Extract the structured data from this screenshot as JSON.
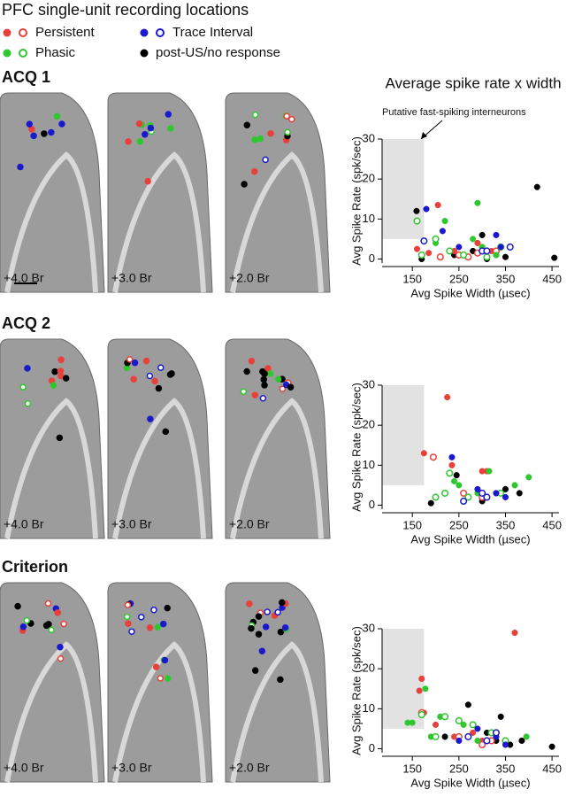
{
  "legend": {
    "title": "PFC single-unit recording locations",
    "items": [
      {
        "label": "Persistent",
        "color": "#e8403a",
        "open": true
      },
      {
        "label": "Phasic",
        "color": "#2ec82e",
        "open": true
      },
      {
        "label": "Trace Interval",
        "color": "#1a1acc",
        "open": true
      },
      {
        "label": "post-US/no response",
        "color": "#000000",
        "open": false
      }
    ]
  },
  "scatter_title": "Average spike rate x width",
  "shade_label": "Putative fast-spiking interneurons",
  "rows": [
    {
      "title": "ACQ 1",
      "slices": [
        "+4.0 Br",
        "+3.0 Br",
        "+2.0 Br"
      ]
    },
    {
      "title": "ACQ 2",
      "slices": [
        "+4.0 Br",
        "+3.0 Br",
        "+2.0 Br"
      ]
    },
    {
      "title": "Criterion",
      "slices": [
        "+4.0 Br",
        "+3.0 Br",
        "+2.0 Br"
      ]
    }
  ],
  "chart_data": [
    {
      "type": "scatter",
      "xlabel": "Avg Spike Width (µsec)",
      "ylabel": "Avg Spike Rate (spk/sec)",
      "xlim": [
        85,
        465
      ],
      "ylim": [
        -1,
        30
      ],
      "xticks": [
        150,
        250,
        350,
        450
      ],
      "yticks": [
        0,
        10,
        20,
        30
      ],
      "shade": {
        "x": [
          85,
          175
        ],
        "y": [
          5,
          30
        ]
      },
      "series": [
        {
          "color": "#000000",
          "open": false,
          "x": [
            159,
            418,
            455,
            300,
            280,
            330,
            170,
            240,
            310,
            350
          ],
          "y": [
            12,
            18,
            0.3,
            6,
            2,
            1,
            0,
            1,
            0,
            0.5
          ]
        },
        {
          "color": "#e8403a",
          "open": false,
          "x": [
            205,
            160,
            185,
            290,
            300,
            320,
            240,
            260
          ],
          "y": [
            13.5,
            2.5,
            1.5,
            4,
            3,
            2,
            2,
            1
          ]
        },
        {
          "color": "#e8403a",
          "open": true,
          "x": [
            210,
            250,
            270,
            330,
            290
          ],
          "y": [
            0.5,
            1,
            0.5,
            2,
            1.5
          ]
        },
        {
          "color": "#2ec82e",
          "open": false,
          "x": [
            290,
            220,
            200,
            280,
            300,
            330
          ],
          "y": [
            14,
            9.5,
            4,
            5,
            3,
            1
          ]
        },
        {
          "color": "#2ec82e",
          "open": true,
          "x": [
            160,
            200,
            230,
            260,
            310,
            340,
            170
          ],
          "y": [
            9.5,
            5,
            2,
            1,
            0.5,
            3,
            1
          ]
        },
        {
          "color": "#1a1acc",
          "open": false,
          "x": [
            180,
            215,
            250,
            330,
            340
          ],
          "y": [
            12.5,
            7,
            3,
            6,
            3
          ]
        },
        {
          "color": "#1a1acc",
          "open": true,
          "x": [
            175,
            300,
            360,
            310
          ],
          "y": [
            4.5,
            2,
            3,
            2
          ]
        }
      ]
    },
    {
      "type": "scatter",
      "xlabel": "Avg Spike Width (µsec)",
      "ylabel": "Avg Spike Rate (spk/sec)",
      "xlim": [
        85,
        465
      ],
      "ylim": [
        -1,
        30
      ],
      "xticks": [
        150,
        250,
        350,
        450
      ],
      "yticks": [
        0,
        10,
        20,
        30
      ],
      "shade": {
        "x": [
          85,
          175
        ],
        "y": [
          5,
          30
        ]
      },
      "series": [
        {
          "color": "#000000",
          "open": false,
          "x": [
            245,
            190,
            270,
            330,
            350,
            380,
            300
          ],
          "y": [
            7.5,
            0.5,
            2,
            3,
            4,
            3,
            1
          ]
        },
        {
          "color": "#e8403a",
          "open": false,
          "x": [
            225,
            175,
            235,
            300,
            310
          ],
          "y": [
            27,
            13,
            10,
            8.5,
            8.5
          ]
        },
        {
          "color": "#e8403a",
          "open": true,
          "x": [
            195,
            260,
            300
          ],
          "y": [
            12,
            3,
            2
          ]
        },
        {
          "color": "#2ec82e",
          "open": false,
          "x": [
            250,
            315,
            400,
            290,
            370,
            240
          ],
          "y": [
            5,
            8.5,
            7,
            3,
            5,
            6
          ]
        },
        {
          "color": "#2ec82e",
          "open": true,
          "x": [
            230,
            200,
            270,
            340,
            220
          ],
          "y": [
            8,
            2,
            2,
            3,
            3
          ]
        },
        {
          "color": "#1a1acc",
          "open": false,
          "x": [
            235,
            290,
            330,
            350
          ],
          "y": [
            12,
            4,
            3,
            2
          ]
        },
        {
          "color": "#1a1acc",
          "open": true,
          "x": [
            300,
            310,
            260
          ],
          "y": [
            3,
            2,
            1
          ]
        }
      ]
    },
    {
      "type": "scatter",
      "xlabel": "Avg Spike Width (µsec)",
      "ylabel": "Avg Spike Rate (spk/sec)",
      "xlim": [
        85,
        465
      ],
      "ylim": [
        -1,
        30
      ],
      "xticks": [
        150,
        250,
        350,
        450
      ],
      "yticks": [
        0,
        10,
        20,
        30
      ],
      "shade": {
        "x": [
          85,
          175
        ],
        "y": [
          5,
          30
        ]
      },
      "series": [
        {
          "color": "#000000",
          "open": false,
          "x": [
            270,
            340,
            450,
            385,
            220,
            310,
            330,
            360
          ],
          "y": [
            11,
            8,
            0.5,
            2,
            3,
            4,
            2,
            1
          ]
        },
        {
          "color": "#e8403a",
          "open": false,
          "x": [
            370,
            170,
            165,
            175,
            200,
            280,
            300,
            240
          ],
          "y": [
            29,
            17.5,
            14.5,
            9,
            6,
            4,
            2,
            3
          ]
        },
        {
          "color": "#e8403a",
          "open": true,
          "x": [
            170,
            250,
            320,
            300
          ],
          "y": [
            9,
            3,
            2,
            1
          ]
        },
        {
          "color": "#2ec82e",
          "open": false,
          "x": [
            178,
            140,
            150,
            190,
            260,
            210,
            395,
            290
          ],
          "y": [
            15,
            6.5,
            6.5,
            3,
            6,
            8,
            3,
            2
          ]
        },
        {
          "color": "#2ec82e",
          "open": true,
          "x": [
            170,
            220,
            250,
            280,
            320,
            350,
            200
          ],
          "y": [
            8.5,
            8,
            7,
            6,
            4,
            2,
            3
          ]
        },
        {
          "color": "#1a1acc",
          "open": false,
          "x": [
            290,
            330,
            250,
            350
          ],
          "y": [
            5,
            3,
            2,
            1
          ]
        },
        {
          "color": "#1a1acc",
          "open": true,
          "x": [
            330,
            310,
            270
          ],
          "y": [
            4,
            2,
            3
          ]
        }
      ]
    }
  ]
}
